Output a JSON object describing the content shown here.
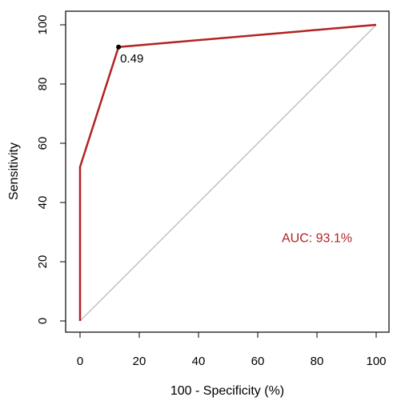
{
  "chart_data": {
    "type": "line",
    "title": "",
    "xlabel": "100 - Specificity (%)",
    "ylabel": "Sensitivity",
    "xlim": [
      0,
      100
    ],
    "ylim": [
      0,
      100
    ],
    "x_ticks": [
      0,
      20,
      40,
      60,
      80,
      100
    ],
    "y_ticks": [
      0,
      20,
      40,
      60,
      80,
      100
    ],
    "grid": false,
    "series": [
      {
        "color": "#b22222",
        "points": [
          {
            "x": 0,
            "y": 0
          },
          {
            "x": 0,
            "y": 52
          },
          {
            "x": 13,
            "y": 92.5
          },
          {
            "x": 100,
            "y": 100
          }
        ]
      }
    ],
    "reference_line": {
      "from": [
        0,
        0
      ],
      "to": [
        100,
        100
      ],
      "color": "#aaaaaa"
    },
    "threshold_point": {
      "x": 13,
      "y": 92.5,
      "label": "0.49",
      "color": "#000000"
    },
    "annotation": {
      "text": "AUC: 93.1%",
      "x": 80,
      "y": 28,
      "color": "#b22222"
    }
  }
}
